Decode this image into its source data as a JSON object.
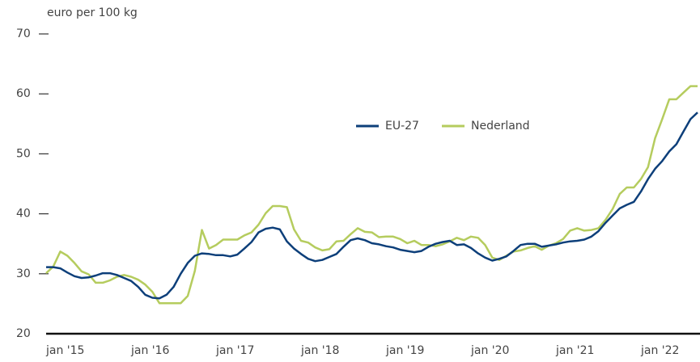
{
  "chart_data": {
    "type": "line",
    "y_axis_label": "euro per 100 kg",
    "categories": [
      "jan '15",
      null,
      null,
      null,
      null,
      null,
      null,
      null,
      null,
      null,
      null,
      null,
      "jan '16",
      null,
      null,
      null,
      null,
      null,
      null,
      null,
      null,
      null,
      null,
      null,
      "jan '17",
      null,
      null,
      null,
      null,
      null,
      null,
      null,
      null,
      null,
      null,
      null,
      "jan '18",
      null,
      null,
      null,
      null,
      null,
      null,
      null,
      null,
      null,
      null,
      null,
      "jan '19",
      null,
      null,
      null,
      null,
      null,
      null,
      null,
      null,
      null,
      null,
      null,
      "jan '20",
      null,
      null,
      null,
      null,
      null,
      null,
      null,
      null,
      null,
      null,
      null,
      "jan '21",
      null,
      null,
      null,
      null,
      null,
      null,
      null,
      null,
      null,
      null,
      null,
      "jan '22",
      null,
      null,
      null,
      null,
      null,
      null,
      null,
      null
    ],
    "series": [
      {
        "name": "EU-27",
        "color": "#0d3f7a",
        "values": [
          31.1,
          31.1,
          30.9,
          30.2,
          29.6,
          29.3,
          29.4,
          29.7,
          30.1,
          30.1,
          29.8,
          29.3,
          28.8,
          27.8,
          26.5,
          26.0,
          25.9,
          26.5,
          27.8,
          30.0,
          31.8,
          33.0,
          33.4,
          33.3,
          33.1,
          33.1,
          32.9,
          33.2,
          34.2,
          35.3,
          36.9,
          37.5,
          37.7,
          37.4,
          35.4,
          34.2,
          33.3,
          32.5,
          32.1,
          32.3,
          32.8,
          33.3,
          34.5,
          35.6,
          35.9,
          35.6,
          35.1,
          34.9,
          34.6,
          34.4,
          34.0,
          33.8,
          33.6,
          33.8,
          34.5,
          35.0,
          35.3,
          35.5,
          34.8,
          34.9,
          34.3,
          33.4,
          32.7,
          32.2,
          32.5,
          32.9,
          33.8,
          34.8,
          35.0,
          35.0,
          34.5,
          34.7,
          34.9,
          35.2,
          35.4,
          35.5,
          35.7,
          36.2,
          37.1,
          38.5,
          39.7,
          40.9,
          41.5,
          42.0,
          43.7,
          45.8,
          47.5,
          48.8,
          50.4,
          51.6,
          53.7,
          55.8,
          56.9
        ]
      },
      {
        "name": "Nederland",
        "color": "#b5cc5e",
        "values": [
          30.1,
          31.2,
          33.7,
          33.0,
          31.8,
          30.4,
          29.9,
          28.5,
          28.5,
          28.9,
          29.5,
          29.8,
          29.5,
          29.0,
          28.2,
          27.0,
          25.1,
          25.1,
          25.1,
          25.1,
          26.3,
          30.5,
          37.3,
          34.2,
          34.8,
          35.7,
          35.7,
          35.7,
          36.4,
          36.9,
          38.2,
          40.1,
          41.3,
          41.3,
          41.1,
          37.4,
          35.5,
          35.2,
          34.4,
          33.9,
          34.1,
          35.4,
          35.5,
          36.6,
          37.6,
          37.0,
          36.9,
          36.1,
          36.2,
          36.2,
          35.8,
          35.1,
          35.5,
          34.8,
          34.8,
          34.6,
          34.9,
          35.4,
          36.0,
          35.6,
          36.2,
          36.0,
          34.8,
          32.7,
          32.3,
          33.0,
          33.7,
          33.9,
          34.3,
          34.6,
          34.0,
          34.7,
          35.1,
          35.8,
          37.2,
          37.6,
          37.2,
          37.3,
          37.6,
          39.0,
          40.8,
          43.3,
          44.4,
          44.4,
          45.8,
          47.8,
          52.6,
          55.8,
          59.1,
          59.1,
          60.2,
          61.3,
          61.3
        ]
      }
    ],
    "ylim": [
      20,
      70
    ],
    "yticks": [
      20,
      30,
      40,
      50,
      60,
      70
    ],
    "legend": "top-center"
  }
}
